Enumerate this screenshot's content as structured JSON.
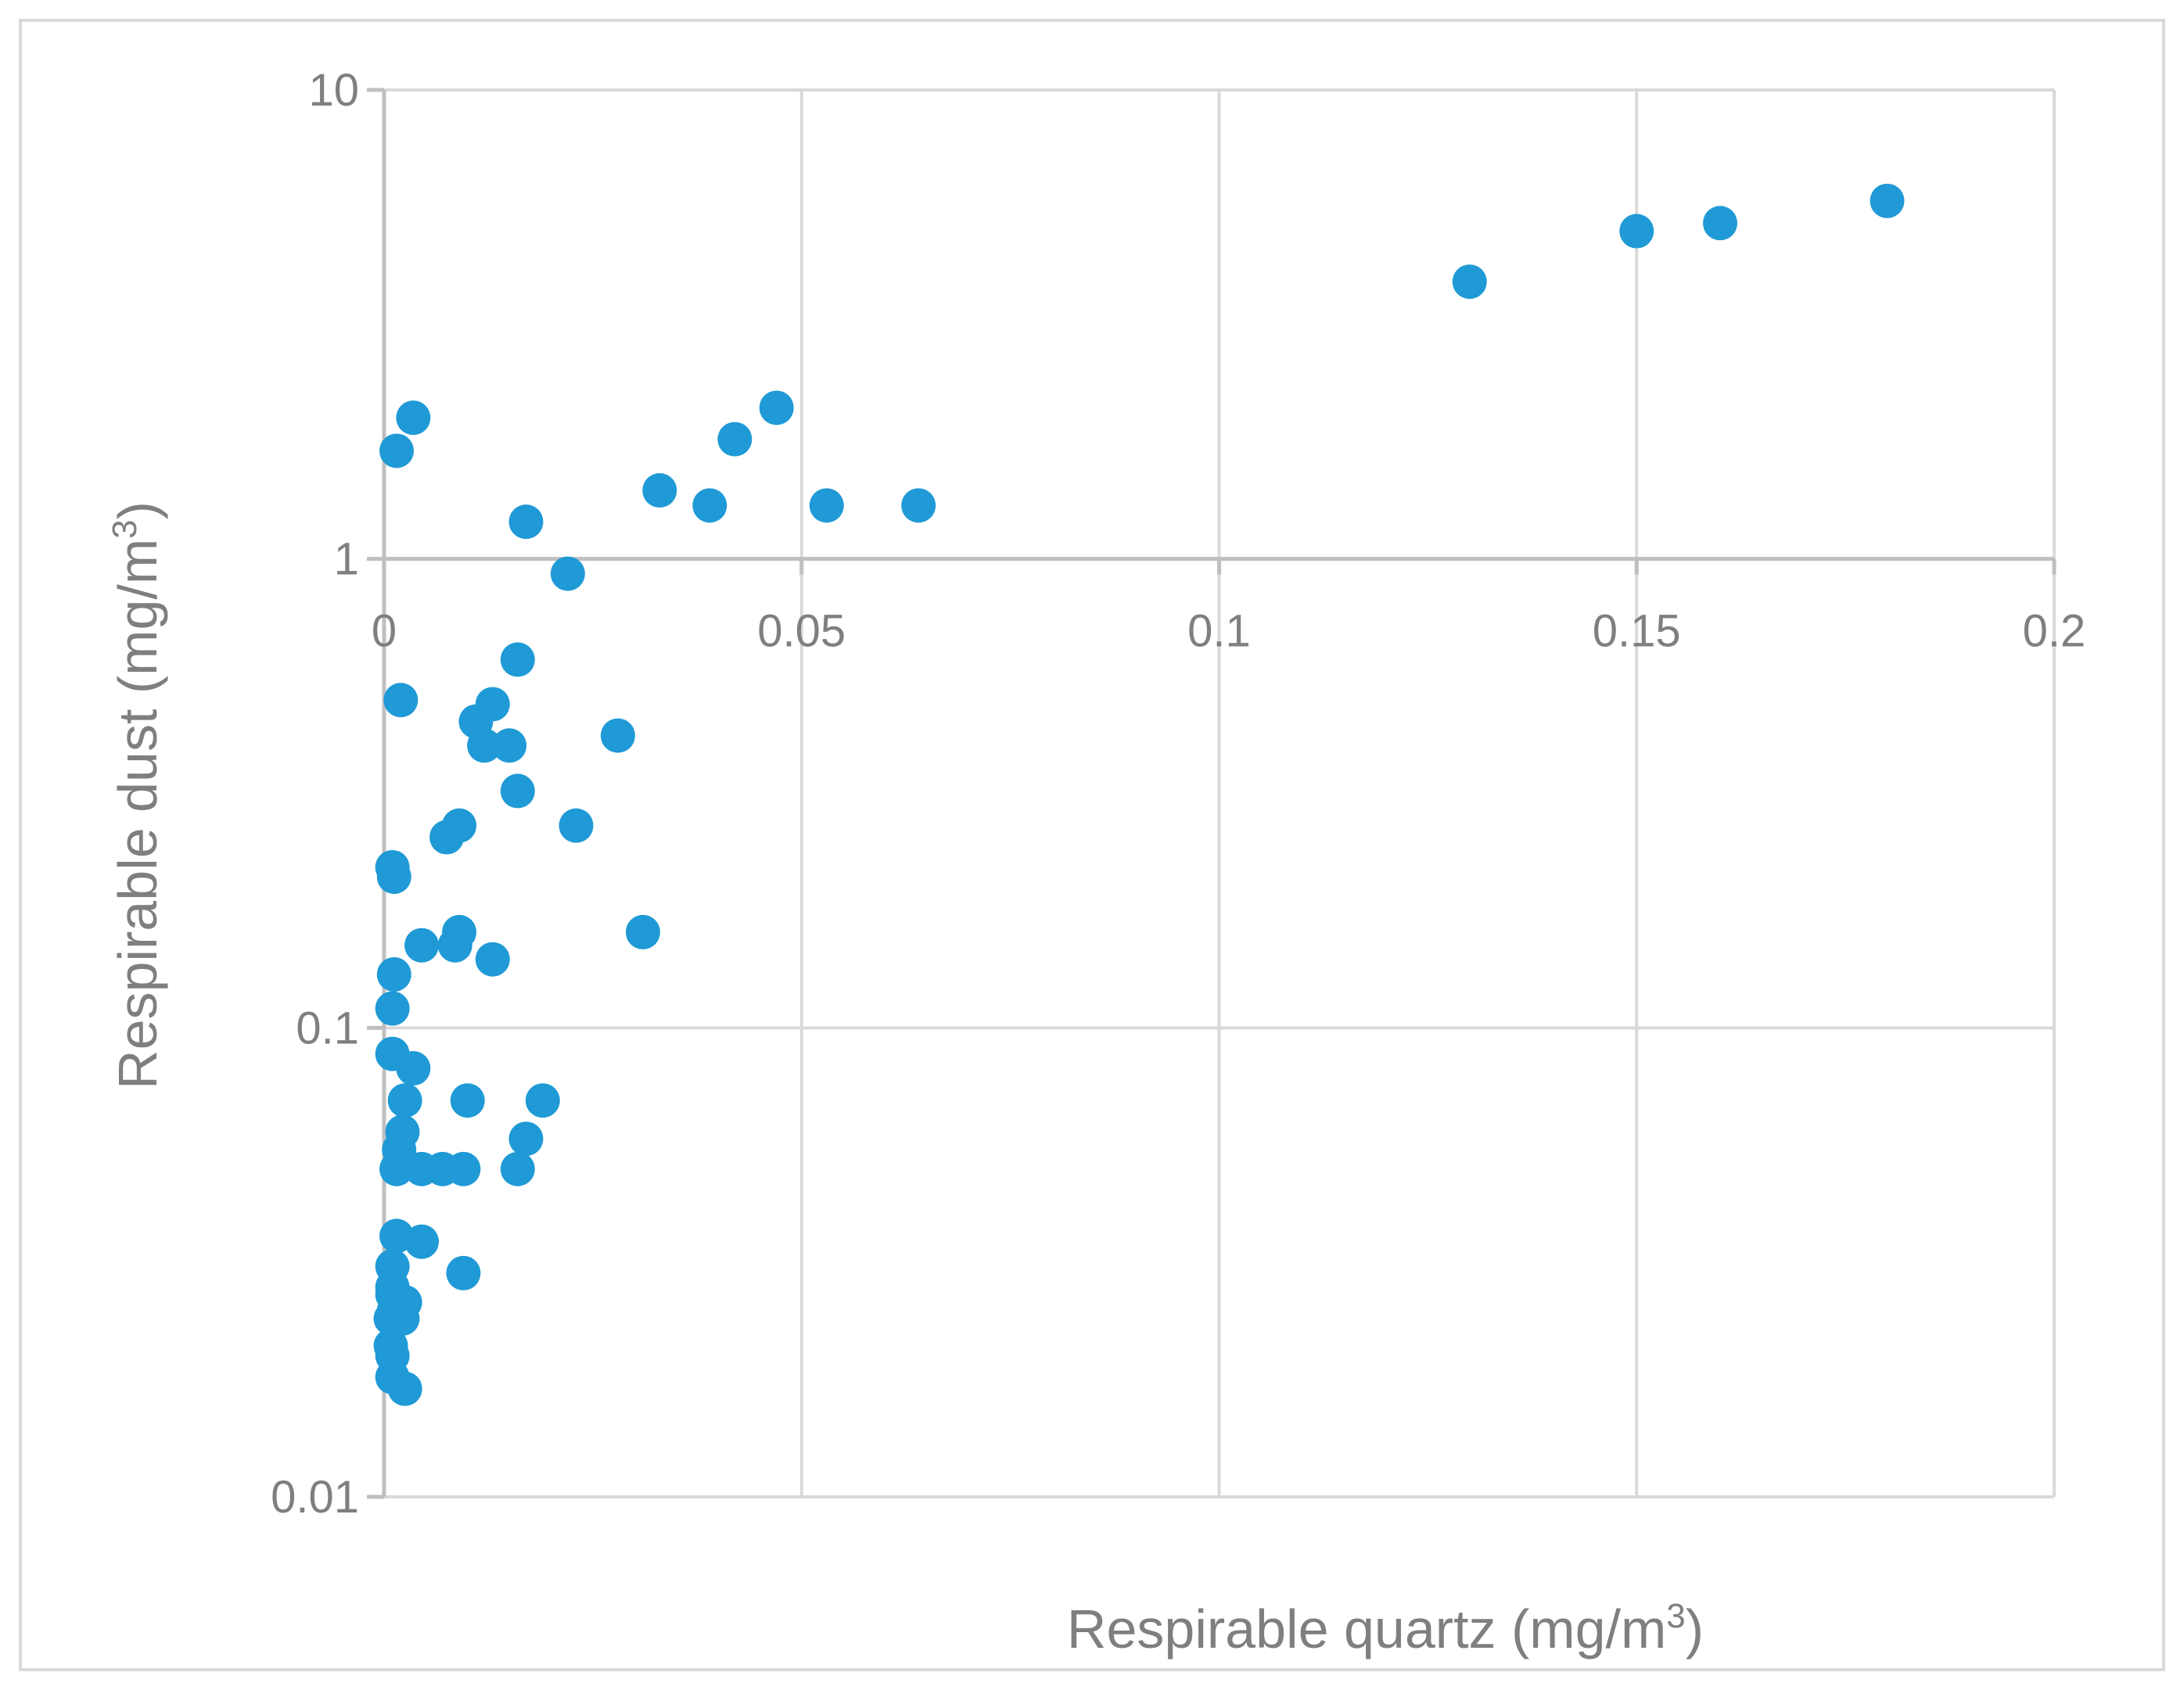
{
  "chart_data": {
    "type": "scatter",
    "title": "",
    "xlabel": "Respirable quartz (mg/m",
    "xlabel_sup": "3",
    "xlabel_end": ")",
    "ylabel": "Respirable dust (mg/m",
    "ylabel_sup": "3",
    "ylabel_end": ")",
    "xlim": [
      0,
      0.2
    ],
    "ylim": [
      0.01,
      10
    ],
    "y_scale": "log",
    "x_axis_crosses_y_at": 1,
    "grid": true,
    "legend": "none",
    "x_ticks": [
      "0",
      "0.05",
      "0.1",
      "0.15",
      "0.2"
    ],
    "x_tick_values": [
      0,
      0.05,
      0.1,
      0.15,
      0.2
    ],
    "y_ticks": [
      "0.01",
      "0.1",
      "1",
      "10"
    ],
    "y_tick_values": [
      0.01,
      0.1,
      1,
      10
    ],
    "colors": {
      "marker": "#1f9ad6",
      "grid": "#d9d9d9",
      "axis": "#bfbfbf",
      "text": "#7f7f7f",
      "border": "#d9d9d9"
    },
    "series": [
      {
        "points": [
          [
            0.18,
            5.8
          ],
          [
            0.16,
            5.2
          ],
          [
            0.15,
            5.0
          ],
          [
            0.13,
            3.9
          ],
          [
            0.047,
            2.1
          ],
          [
            0.042,
            1.8
          ],
          [
            0.033,
            1.4
          ],
          [
            0.039,
            1.3
          ],
          [
            0.053,
            1.3
          ],
          [
            0.064,
            1.3
          ],
          [
            0.0035,
            2.0
          ],
          [
            0.0015,
            1.7
          ],
          [
            0.017,
            1.2
          ],
          [
            0.022,
            0.93
          ],
          [
            0.016,
            0.61
          ],
          [
            0.002,
            0.5
          ],
          [
            0.013,
            0.49
          ],
          [
            0.011,
            0.45
          ],
          [
            0.012,
            0.4
          ],
          [
            0.015,
            0.4
          ],
          [
            0.028,
            0.42
          ],
          [
            0.016,
            0.32
          ],
          [
            0.009,
            0.27
          ],
          [
            0.0075,
            0.255
          ],
          [
            0.023,
            0.27
          ],
          [
            0.001,
            0.22
          ],
          [
            0.0012,
            0.21
          ],
          [
            0.0045,
            0.15
          ],
          [
            0.009,
            0.16
          ],
          [
            0.0085,
            0.15
          ],
          [
            0.031,
            0.16
          ],
          [
            0.013,
            0.14
          ],
          [
            0.0012,
            0.13
          ],
          [
            0.001,
            0.11
          ],
          [
            0.001,
            0.088
          ],
          [
            0.0035,
            0.082
          ],
          [
            0.0025,
            0.07
          ],
          [
            0.01,
            0.07
          ],
          [
            0.019,
            0.07
          ],
          [
            0.0022,
            0.06
          ],
          [
            0.0018,
            0.055
          ],
          [
            0.017,
            0.058
          ],
          [
            0.0015,
            0.05
          ],
          [
            0.0045,
            0.05
          ],
          [
            0.007,
            0.05
          ],
          [
            0.0095,
            0.05
          ],
          [
            0.016,
            0.05
          ],
          [
            0.0015,
            0.036
          ],
          [
            0.0045,
            0.035
          ],
          [
            0.001,
            0.031
          ],
          [
            0.0095,
            0.03
          ],
          [
            0.001,
            0.028
          ],
          [
            0.001,
            0.027
          ],
          [
            0.0025,
            0.026
          ],
          [
            0.0012,
            0.025
          ],
          [
            0.0008,
            0.024
          ],
          [
            0.0022,
            0.024
          ],
          [
            0.0008,
            0.021
          ],
          [
            0.001,
            0.02
          ],
          [
            0.001,
            0.018
          ],
          [
            0.0025,
            0.017
          ]
        ]
      }
    ]
  }
}
